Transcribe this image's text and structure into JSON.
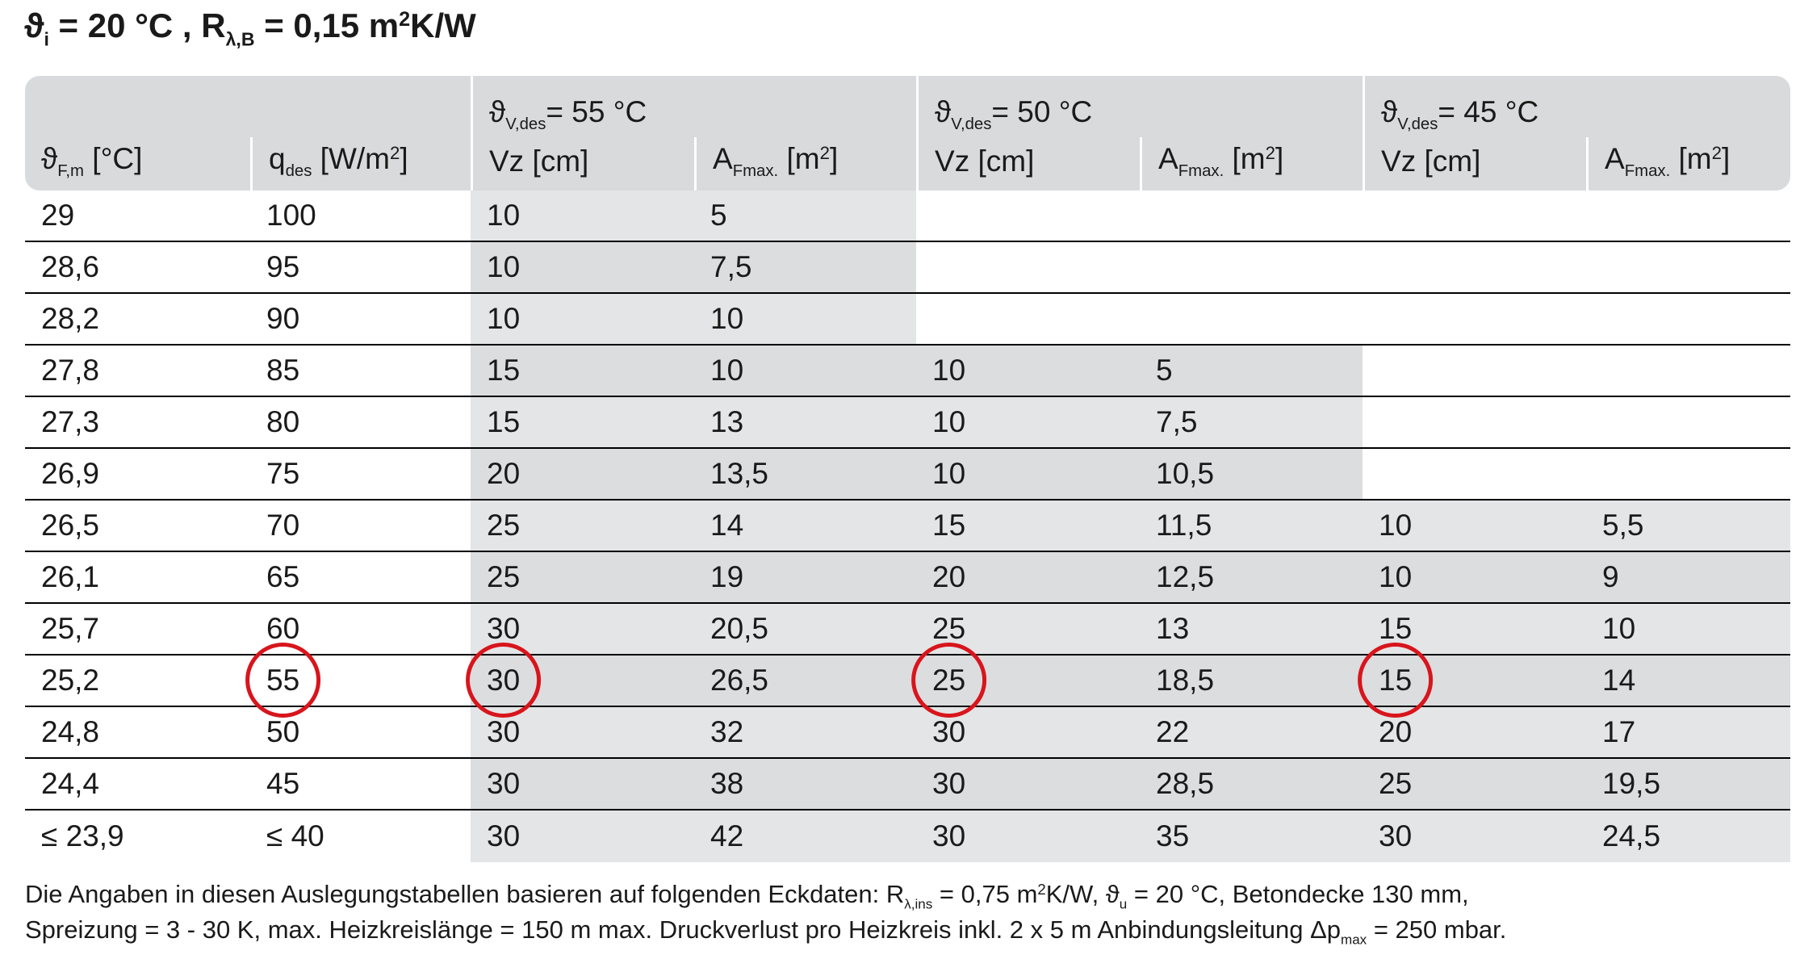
{
  "header": {
    "title": [
      "ϑ",
      "i",
      " = 20 °C , R",
      "λ,B",
      " = 0,15 m",
      "2",
      "K/W"
    ]
  },
  "table": {
    "groups": [
      [
        "ϑ",
        "V,des",
        "= 55 °C"
      ],
      [
        "ϑ",
        "V,des",
        "= 50 °C"
      ],
      [
        "ϑ",
        "V,des",
        "= 45 °C"
      ]
    ],
    "columns": [
      [
        "ϑ",
        "F,m",
        " [°C]"
      ],
      [
        "q",
        "des",
        " [W/m",
        "2",
        "]"
      ],
      [
        "Vz [cm]"
      ],
      [
        "A",
        "Fmax.",
        " [m",
        "2",
        "]"
      ],
      [
        "Vz [cm]"
      ],
      [
        "A",
        "Fmax.",
        " [m",
        "2",
        "]"
      ],
      [
        "Vz [cm]"
      ],
      [
        "A",
        "Fmax.",
        " [m",
        "2",
        "]"
      ]
    ],
    "rows": [
      [
        "29",
        "100",
        "10",
        "5",
        null,
        null,
        null,
        null
      ],
      [
        "28,6",
        "95",
        "10",
        "7,5",
        null,
        null,
        null,
        null
      ],
      [
        "28,2",
        "90",
        "10",
        "10",
        null,
        null,
        null,
        null
      ],
      [
        "27,8",
        "85",
        "15",
        "10",
        "10",
        "5",
        null,
        null
      ],
      [
        "27,3",
        "80",
        "15",
        "13",
        "10",
        "7,5",
        null,
        null
      ],
      [
        "26,9",
        "75",
        "20",
        "13,5",
        "10",
        "10,5",
        null,
        null
      ],
      [
        "26,5",
        "70",
        "25",
        "14",
        "15",
        "11,5",
        "10",
        "5,5"
      ],
      [
        "26,1",
        "65",
        "25",
        "19",
        "20",
        "12,5",
        "10",
        "9"
      ],
      [
        "25,7",
        "60",
        "30",
        "20,5",
        "25",
        "13",
        "15",
        "10"
      ],
      [
        "25,2",
        "55",
        "30",
        "26,5",
        "25",
        "18,5",
        "15",
        "14"
      ],
      [
        "24,8",
        "50",
        "30",
        "32",
        "30",
        "22",
        "20",
        "17"
      ],
      [
        "24,4",
        "45",
        "30",
        "38",
        "30",
        "28,5",
        "25",
        "19,5"
      ],
      [
        "≤ 23,9",
        "≤ 40",
        "30",
        "42",
        "30",
        "35",
        "30",
        "24,5"
      ]
    ]
  },
  "footnote": {
    "line1": [
      "Die Angaben in diesen Auslegungstabellen basieren auf folgenden Eckdaten: R",
      "λ,ins",
      " = 0,75 m",
      "2",
      "K/W, ϑ",
      "u",
      " = 20 °C, Betondecke 130 mm,"
    ],
    "line2": [
      "Spreizung = 3 - 30 K, max. Heizkreislänge = 150 m max. Druckverlust pro Heizkreis inkl. 2 x 5 m Anbindungsleitung Δp",
      "max",
      " = 250 mbar."
    ]
  }
}
